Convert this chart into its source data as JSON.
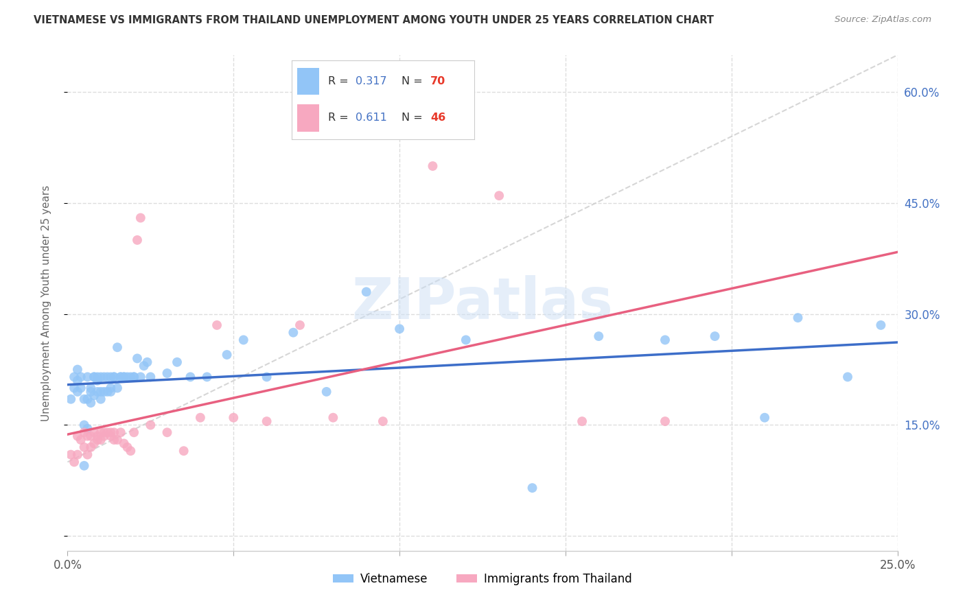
{
  "title": "VIETNAMESE VS IMMIGRANTS FROM THAILAND UNEMPLOYMENT AMONG YOUTH UNDER 25 YEARS CORRELATION CHART",
  "source": "Source: ZipAtlas.com",
  "ylabel": "Unemployment Among Youth under 25 years",
  "xlim": [
    0,
    0.25
  ],
  "ylim": [
    -0.02,
    0.65
  ],
  "yticks_right": [
    0.0,
    0.15,
    0.3,
    0.45,
    0.6
  ],
  "ytick_labels_right": [
    "",
    "15.0%",
    "30.0%",
    "45.0%",
    "60.0%"
  ],
  "xticks": [
    0.0,
    0.05,
    0.1,
    0.15,
    0.2,
    0.25
  ],
  "xtick_labels": [
    "0.0%",
    "",
    "",
    "",
    "",
    "25.0%"
  ],
  "legend_r1": "0.317",
  "legend_n1": "70",
  "legend_r2": "0.611",
  "legend_n2": "46",
  "color_blue": "#92C5F7",
  "color_pink": "#F7A8C0",
  "color_line_blue": "#3D6EC9",
  "color_line_pink": "#E86080",
  "color_dashed": "#CCCCCC",
  "color_r_value": "#4472C4",
  "color_n_value": "#E8392A",
  "watermark": "ZIPatlas",
  "background_color": "#FFFFFF",
  "grid_color": "#DDDDDD",
  "viet_x": [
    0.001,
    0.002,
    0.002,
    0.003,
    0.003,
    0.003,
    0.004,
    0.004,
    0.005,
    0.005,
    0.005,
    0.006,
    0.006,
    0.006,
    0.007,
    0.007,
    0.007,
    0.008,
    0.008,
    0.008,
    0.009,
    0.009,
    0.009,
    0.01,
    0.01,
    0.01,
    0.011,
    0.011,
    0.012,
    0.012,
    0.013,
    0.013,
    0.013,
    0.014,
    0.014,
    0.015,
    0.015,
    0.016,
    0.016,
    0.017,
    0.017,
    0.018,
    0.019,
    0.02,
    0.02,
    0.021,
    0.022,
    0.023,
    0.024,
    0.025,
    0.03,
    0.033,
    0.037,
    0.042,
    0.048,
    0.053,
    0.06,
    0.068,
    0.078,
    0.09,
    0.1,
    0.12,
    0.14,
    0.16,
    0.18,
    0.195,
    0.21,
    0.22,
    0.235,
    0.245
  ],
  "viet_y": [
    0.185,
    0.2,
    0.215,
    0.195,
    0.21,
    0.225,
    0.2,
    0.215,
    0.095,
    0.15,
    0.185,
    0.145,
    0.185,
    0.215,
    0.18,
    0.195,
    0.2,
    0.19,
    0.215,
    0.215,
    0.195,
    0.215,
    0.21,
    0.185,
    0.195,
    0.215,
    0.195,
    0.215,
    0.195,
    0.215,
    0.2,
    0.215,
    0.195,
    0.215,
    0.215,
    0.255,
    0.2,
    0.215,
    0.215,
    0.215,
    0.215,
    0.215,
    0.215,
    0.215,
    0.215,
    0.24,
    0.215,
    0.23,
    0.235,
    0.215,
    0.22,
    0.235,
    0.215,
    0.215,
    0.245,
    0.265,
    0.215,
    0.275,
    0.195,
    0.33,
    0.28,
    0.265,
    0.065,
    0.27,
    0.265,
    0.27,
    0.16,
    0.295,
    0.215,
    0.285
  ],
  "thai_x": [
    0.001,
    0.002,
    0.003,
    0.003,
    0.004,
    0.005,
    0.005,
    0.006,
    0.006,
    0.007,
    0.007,
    0.008,
    0.008,
    0.009,
    0.009,
    0.01,
    0.01,
    0.011,
    0.011,
    0.012,
    0.013,
    0.013,
    0.014,
    0.014,
    0.015,
    0.016,
    0.017,
    0.018,
    0.019,
    0.02,
    0.021,
    0.022,
    0.025,
    0.03,
    0.035,
    0.04,
    0.045,
    0.05,
    0.06,
    0.07,
    0.08,
    0.095,
    0.11,
    0.13,
    0.155,
    0.18
  ],
  "thai_y": [
    0.11,
    0.1,
    0.11,
    0.135,
    0.13,
    0.12,
    0.14,
    0.11,
    0.135,
    0.12,
    0.135,
    0.125,
    0.14,
    0.13,
    0.135,
    0.13,
    0.14,
    0.135,
    0.14,
    0.14,
    0.135,
    0.14,
    0.13,
    0.14,
    0.13,
    0.14,
    0.125,
    0.12,
    0.115,
    0.14,
    0.4,
    0.43,
    0.15,
    0.14,
    0.115,
    0.16,
    0.285,
    0.16,
    0.155,
    0.285,
    0.16,
    0.155,
    0.5,
    0.46,
    0.155,
    0.155
  ]
}
